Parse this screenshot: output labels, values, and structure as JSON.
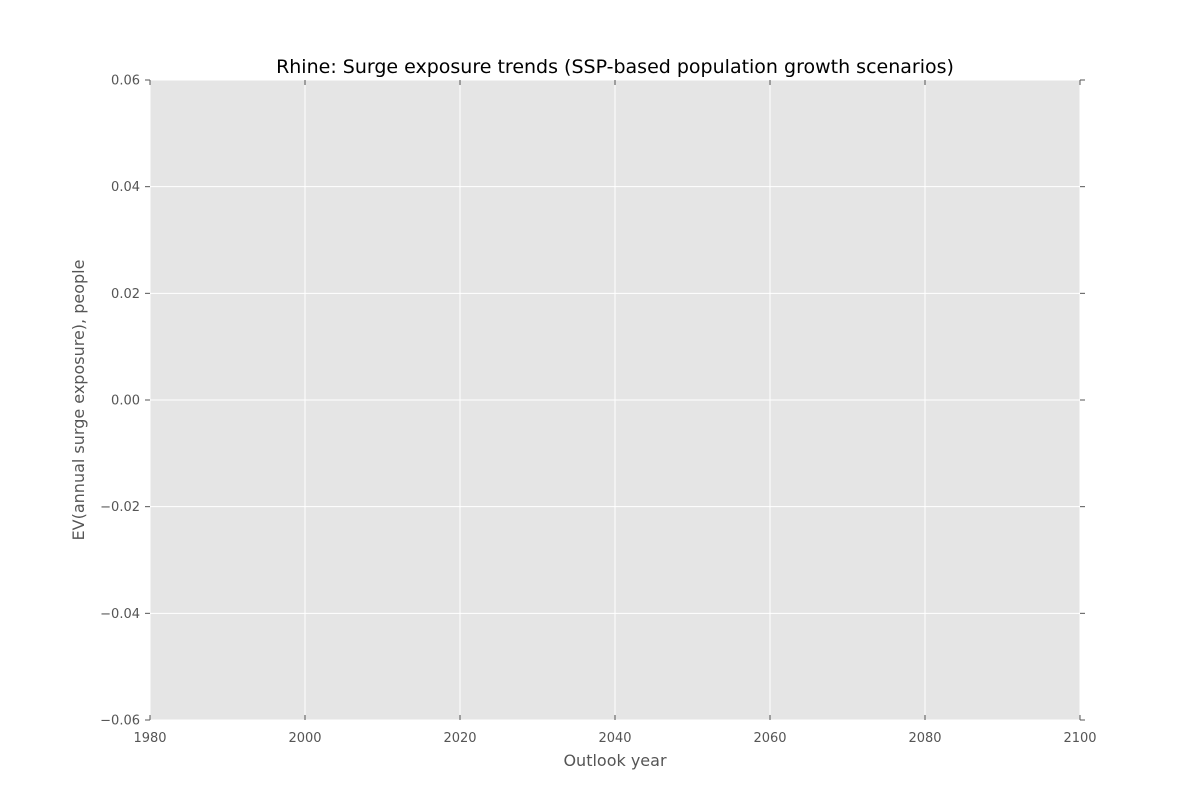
{
  "chart_data": {
    "type": "line",
    "title": "Rhine: Surge exposure trends (SSP-based population growth scenarios)",
    "xlabel": "Outlook year",
    "ylabel": "EV(annual surge exposure), people",
    "xlim": [
      1980,
      2100
    ],
    "ylim": [
      -0.06,
      0.06
    ],
    "x_ticks": [
      1980,
      2000,
      2020,
      2040,
      2060,
      2080,
      2100
    ],
    "x_tick_labels": [
      "1980",
      "2000",
      "2020",
      "2040",
      "2060",
      "2080",
      "2100"
    ],
    "y_ticks": [
      0.06,
      0.04,
      0.02,
      0.0,
      -0.02,
      -0.04,
      -0.06
    ],
    "y_tick_labels": [
      "0.06",
      "0.04",
      "0.02",
      "0.00",
      "−0.02",
      "−0.04",
      "−0.06"
    ],
    "grid": true,
    "series": [],
    "colors": {
      "plot_background": "#e5e5e5",
      "grid": "#ffffff",
      "tick": "#555555",
      "text": "#555555",
      "title": "#000000"
    }
  }
}
